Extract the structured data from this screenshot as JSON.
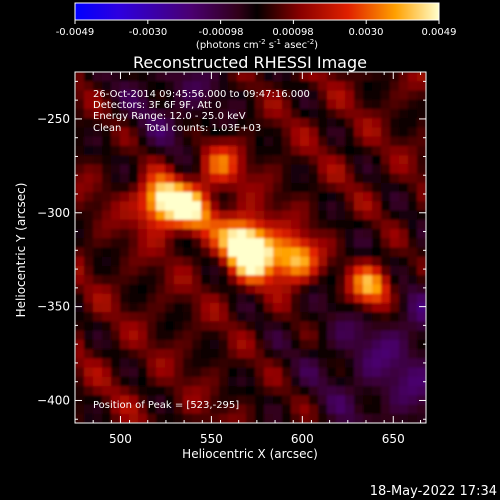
{
  "colorbar": {
    "ticks": [
      "-0.0049",
      "-0.0030",
      "-0.00098",
      "0.00098",
      "0.0030",
      "0.0049"
    ],
    "unit_label": "(photons cm",
    "unit_sup1": "-2",
    "unit_mid": " s",
    "unit_sup2": "-1",
    "unit_end": " asec",
    "unit_sup3": "-2",
    "unit_close": ")"
  },
  "plot": {
    "title": "Reconstructed RHESSI Image",
    "info_line1": "26-Oct-2014 09:45:56.000 to 09:47:16.000",
    "info_line2": "Detectors: 3F 6F 9F, Att 0",
    "info_line3": "Energy Range: 12.0 - 25.0 keV",
    "info_line4_a": "Clean",
    "info_line4_b": "Total counts: 1.03E+03",
    "peak_label": "Position of Peak = [523,-295]"
  },
  "footer": {
    "timestamp": "18-May-2022 17:34"
  },
  "chart_data": {
    "type": "heatmap",
    "title": "Reconstructed RHESSI Image",
    "xlabel": "Heliocentric X (arcsec)",
    "ylabel": "Heliocentric Y (arcsec)",
    "xlim": [
      475,
      668
    ],
    "ylim": [
      -412,
      -225
    ],
    "x_ticks": [
      500,
      550,
      600,
      650
    ],
    "y_ticks": [
      -250,
      -300,
      -350,
      -400
    ],
    "colorbar_range": [
      -0.0049,
      0.0049
    ],
    "colormap": "rhessi-fire",
    "peak": {
      "x": 523,
      "y": -295,
      "label": "Position of Peak = [523,-295]"
    },
    "features": [
      {
        "x": 523,
        "y": -295,
        "value": 0.0049
      },
      {
        "x": 568,
        "y": -315,
        "value": 0.004
      },
      {
        "x": 575,
        "y": -325,
        "value": 0.0042
      },
      {
        "x": 597,
        "y": -327,
        "value": 0.004
      },
      {
        "x": 640,
        "y": -341,
        "value": 0.0043
      },
      {
        "x": 540,
        "y": -300,
        "value": 0.0034
      },
      {
        "x": 555,
        "y": -275,
        "value": 0.0025
      }
    ]
  }
}
